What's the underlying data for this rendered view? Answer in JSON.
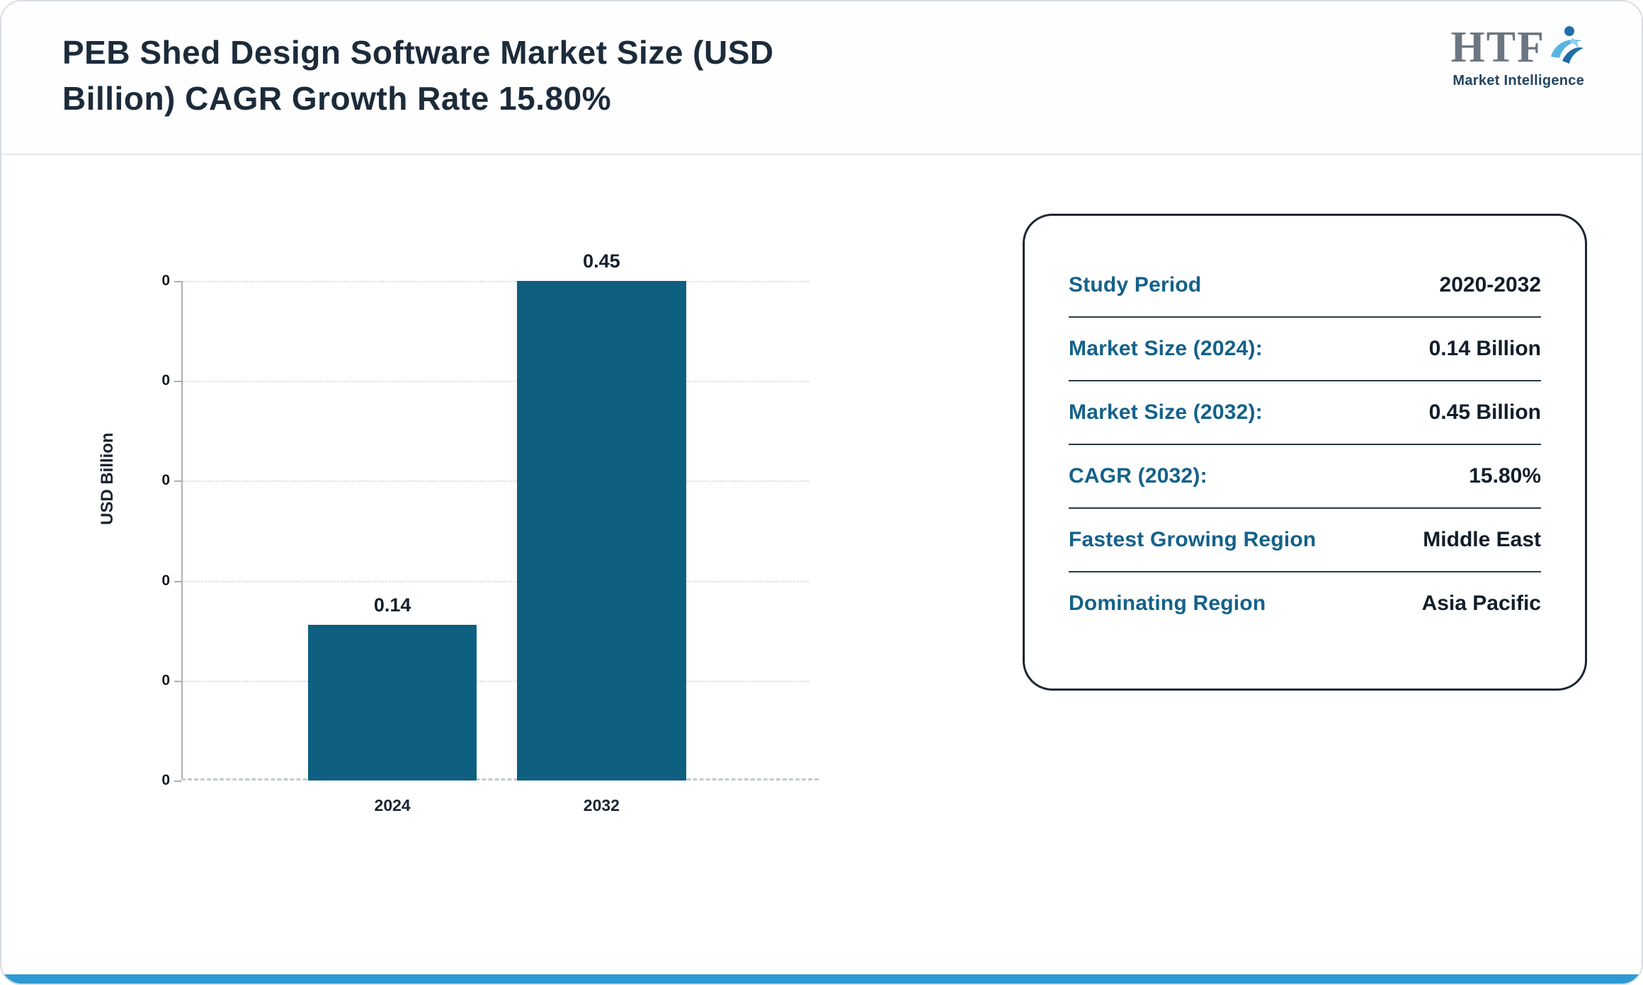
{
  "header": {
    "title_line1": "PEB Shed Design Software Market Size (USD",
    "title_line2": "Billion) CAGR Growth Rate 15.80%",
    "logo": {
      "text": "HTF",
      "subtext": "Market Intelligence",
      "icon": "person-swoosh-icon"
    }
  },
  "chart_data": {
    "type": "bar",
    "categories": [
      "2024",
      "2032"
    ],
    "values": [
      0.14,
      0.45
    ],
    "value_labels": [
      "0.14",
      "0.45"
    ],
    "title": "PEB Shed Design Software Market Size (USD Billion) CAGR Growth Rate 15.80%",
    "xlabel": "",
    "ylabel": "USD Billion",
    "y_tick_labels": [
      "0",
      "0",
      "0",
      "0",
      "0",
      "0"
    ],
    "ylim": [
      0,
      0.45
    ],
    "grid": "horizontal-dotted",
    "legend": "none",
    "bar_color": "#0e5f80"
  },
  "info_card": {
    "rows": [
      {
        "label": "Study Period",
        "value": "2020-2032"
      },
      {
        "label": "Market Size (2024):",
        "value": "0.14 Billion"
      },
      {
        "label": "Market Size (2032):",
        "value": "0.45 Billion"
      },
      {
        "label": "CAGR (2032):",
        "value": "15.80%"
      },
      {
        "label": "Fastest Growing Region",
        "value": "Middle East"
      },
      {
        "label": "Dominating Region",
        "value": "Asia Pacific"
      }
    ]
  },
  "colors": {
    "accent_bar": "#0e5f80",
    "title_navy": "#1c2b3a",
    "label_teal": "#14618a",
    "value_navy": "#121e2a",
    "bottom_strip": "#2d9ad3",
    "logo_blue_light": "#58b5e0",
    "logo_blue_dark": "#1f6fa8"
  }
}
